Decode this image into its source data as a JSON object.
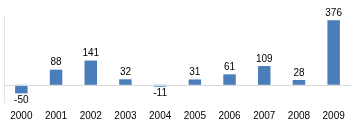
{
  "chart_data": {
    "type": "bar",
    "categories": [
      "2000",
      "2001",
      "2002",
      "2003",
      "2004",
      "2005",
      "2006",
      "2007",
      "2008",
      "2009"
    ],
    "values": [
      -50,
      88,
      141,
      32,
      -11,
      31,
      61,
      109,
      28,
      376
    ],
    "color": "#4a7ebb",
    "ylim": [
      -100,
      400
    ],
    "grid": false,
    "data_labels": true,
    "tick_labels": "x"
  }
}
